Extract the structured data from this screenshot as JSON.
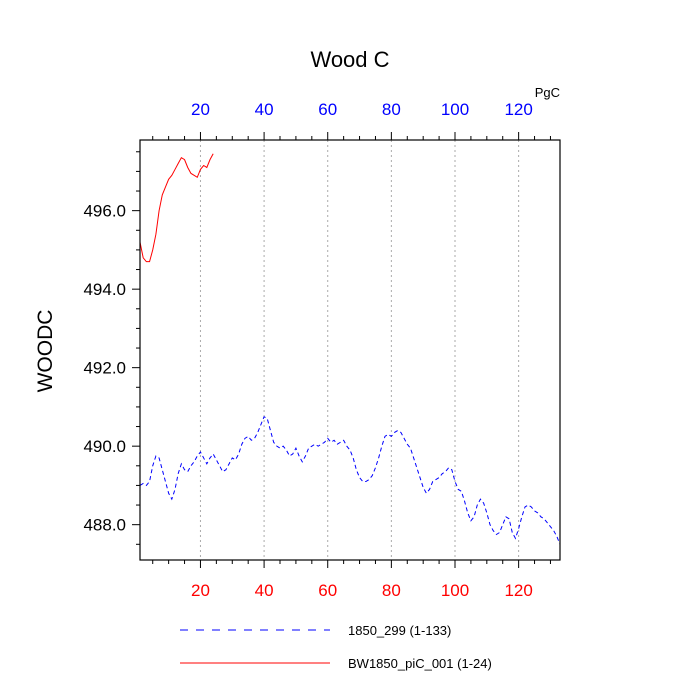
{
  "chart_data": {
    "type": "line",
    "title": "Wood C",
    "units": "PgC",
    "ylabel": "WOODC",
    "xlabel": "",
    "xlim": [
      1,
      133
    ],
    "ylim": [
      487.1,
      497.8
    ],
    "grid": "vertical dotted lines at bottom ticks",
    "x_major_ticks": [
      20,
      40,
      60,
      80,
      100,
      120
    ],
    "x_tick_labels_bottom": [
      "20",
      "40",
      "60",
      "80",
      "100",
      "120"
    ],
    "x_tick_labels_top": [
      "20",
      "40",
      "60",
      "80",
      "100",
      "120"
    ],
    "y_major_ticks": [
      488,
      490,
      492,
      494,
      496
    ],
    "y_tick_labels": [
      "488.0",
      "490.0",
      "492.0",
      "494.0",
      "496.0"
    ],
    "colors": {
      "bottom_axis_labels": "#ff0000",
      "top_axis_labels": "#0000ff"
    },
    "legend_position": "bottom",
    "series": [
      {
        "name": "1850_299 (1-133)",
        "color": "#0000ff",
        "dash": "dashed",
        "x_start": 1,
        "values": [
          489.0,
          489.05,
          489.0,
          489.1,
          489.5,
          489.75,
          489.7,
          489.4,
          489.1,
          488.8,
          488.65,
          488.9,
          489.3,
          489.55,
          489.4,
          489.35,
          489.5,
          489.6,
          489.75,
          489.85,
          489.7,
          489.55,
          489.7,
          489.8,
          489.65,
          489.5,
          489.35,
          489.4,
          489.55,
          489.7,
          489.65,
          489.8,
          490.05,
          490.2,
          490.25,
          490.15,
          490.2,
          490.35,
          490.55,
          490.75,
          490.7,
          490.4,
          490.1,
          490.0,
          489.95,
          490.0,
          489.9,
          489.75,
          489.8,
          489.95,
          489.75,
          489.6,
          489.75,
          489.95,
          490.0,
          490.05,
          490.0,
          490.05,
          490.1,
          490.2,
          490.1,
          490.15,
          490.05,
          490.1,
          490.15,
          490.0,
          489.9,
          489.7,
          489.4,
          489.2,
          489.1,
          489.1,
          489.15,
          489.25,
          489.45,
          489.7,
          490.0,
          490.25,
          490.3,
          490.25,
          490.35,
          490.4,
          490.35,
          490.2,
          490.05,
          489.95,
          489.7,
          489.45,
          489.2,
          488.95,
          488.8,
          488.9,
          489.1,
          489.15,
          489.2,
          489.3,
          489.35,
          489.45,
          489.4,
          489.1,
          488.9,
          488.85,
          488.6,
          488.3,
          488.1,
          488.2,
          488.5,
          488.65,
          488.55,
          488.3,
          488.0,
          487.85,
          487.75,
          487.8,
          488.0,
          488.2,
          488.15,
          487.8,
          487.65,
          487.9,
          488.2,
          488.45,
          488.5,
          488.45,
          488.35,
          488.3,
          488.2,
          488.15,
          488.05,
          487.95,
          487.85,
          487.7,
          487.5
        ]
      },
      {
        "name": "BW1850_piC_001 (1-24)",
        "color": "#ff0000",
        "dash": "solid",
        "x_start": 1,
        "values": [
          495.2,
          494.8,
          494.7,
          494.7,
          495.0,
          495.4,
          496.0,
          496.4,
          496.6,
          496.8,
          496.9,
          497.05,
          497.2,
          497.35,
          497.3,
          497.1,
          496.95,
          496.9,
          496.85,
          497.05,
          497.15,
          497.1,
          497.3,
          497.45
        ]
      }
    ]
  }
}
